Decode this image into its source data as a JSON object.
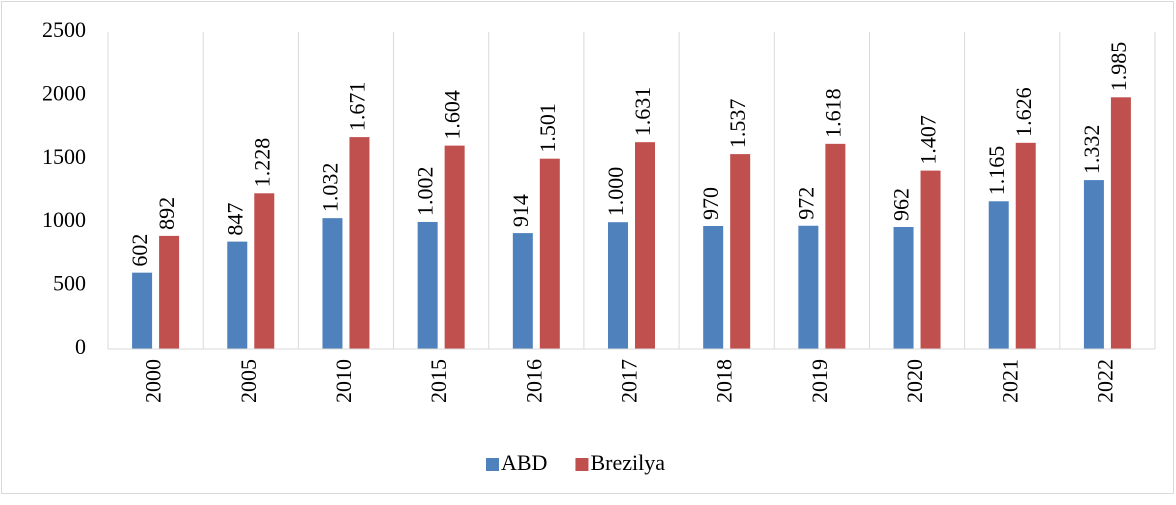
{
  "chart_data": {
    "type": "bar",
    "categories": [
      "2000",
      "2005",
      "2010",
      "2015",
      "2016",
      "2017",
      "2018",
      "2019",
      "2020",
      "2021",
      "2022"
    ],
    "series": [
      {
        "name": "ABD",
        "color": "#4f81bd",
        "values": [
          602,
          847,
          1032,
          1002,
          914,
          1000,
          970,
          972,
          962,
          1165,
          1332
        ],
        "value_labels": [
          "602",
          "847",
          "1.032",
          "1.002",
          "914",
          "1.000",
          "970",
          "972",
          "962",
          "1.165",
          "1.332"
        ]
      },
      {
        "name": "Brezilya",
        "color": "#c0504d",
        "values": [
          892,
          1228,
          1671,
          1604,
          1501,
          1631,
          1537,
          1618,
          1407,
          1626,
          1985
        ],
        "value_labels": [
          "892",
          "1.228",
          "1.671",
          "1.604",
          "1.501",
          "1.631",
          "1.537",
          "1.618",
          "1.407",
          "1.626",
          "1.985"
        ]
      }
    ],
    "ylim": [
      0,
      2500
    ],
    "yticks": [
      0,
      500,
      1000,
      1500,
      2000,
      2500
    ],
    "grid": "vertical",
    "legend": "bottom"
  }
}
